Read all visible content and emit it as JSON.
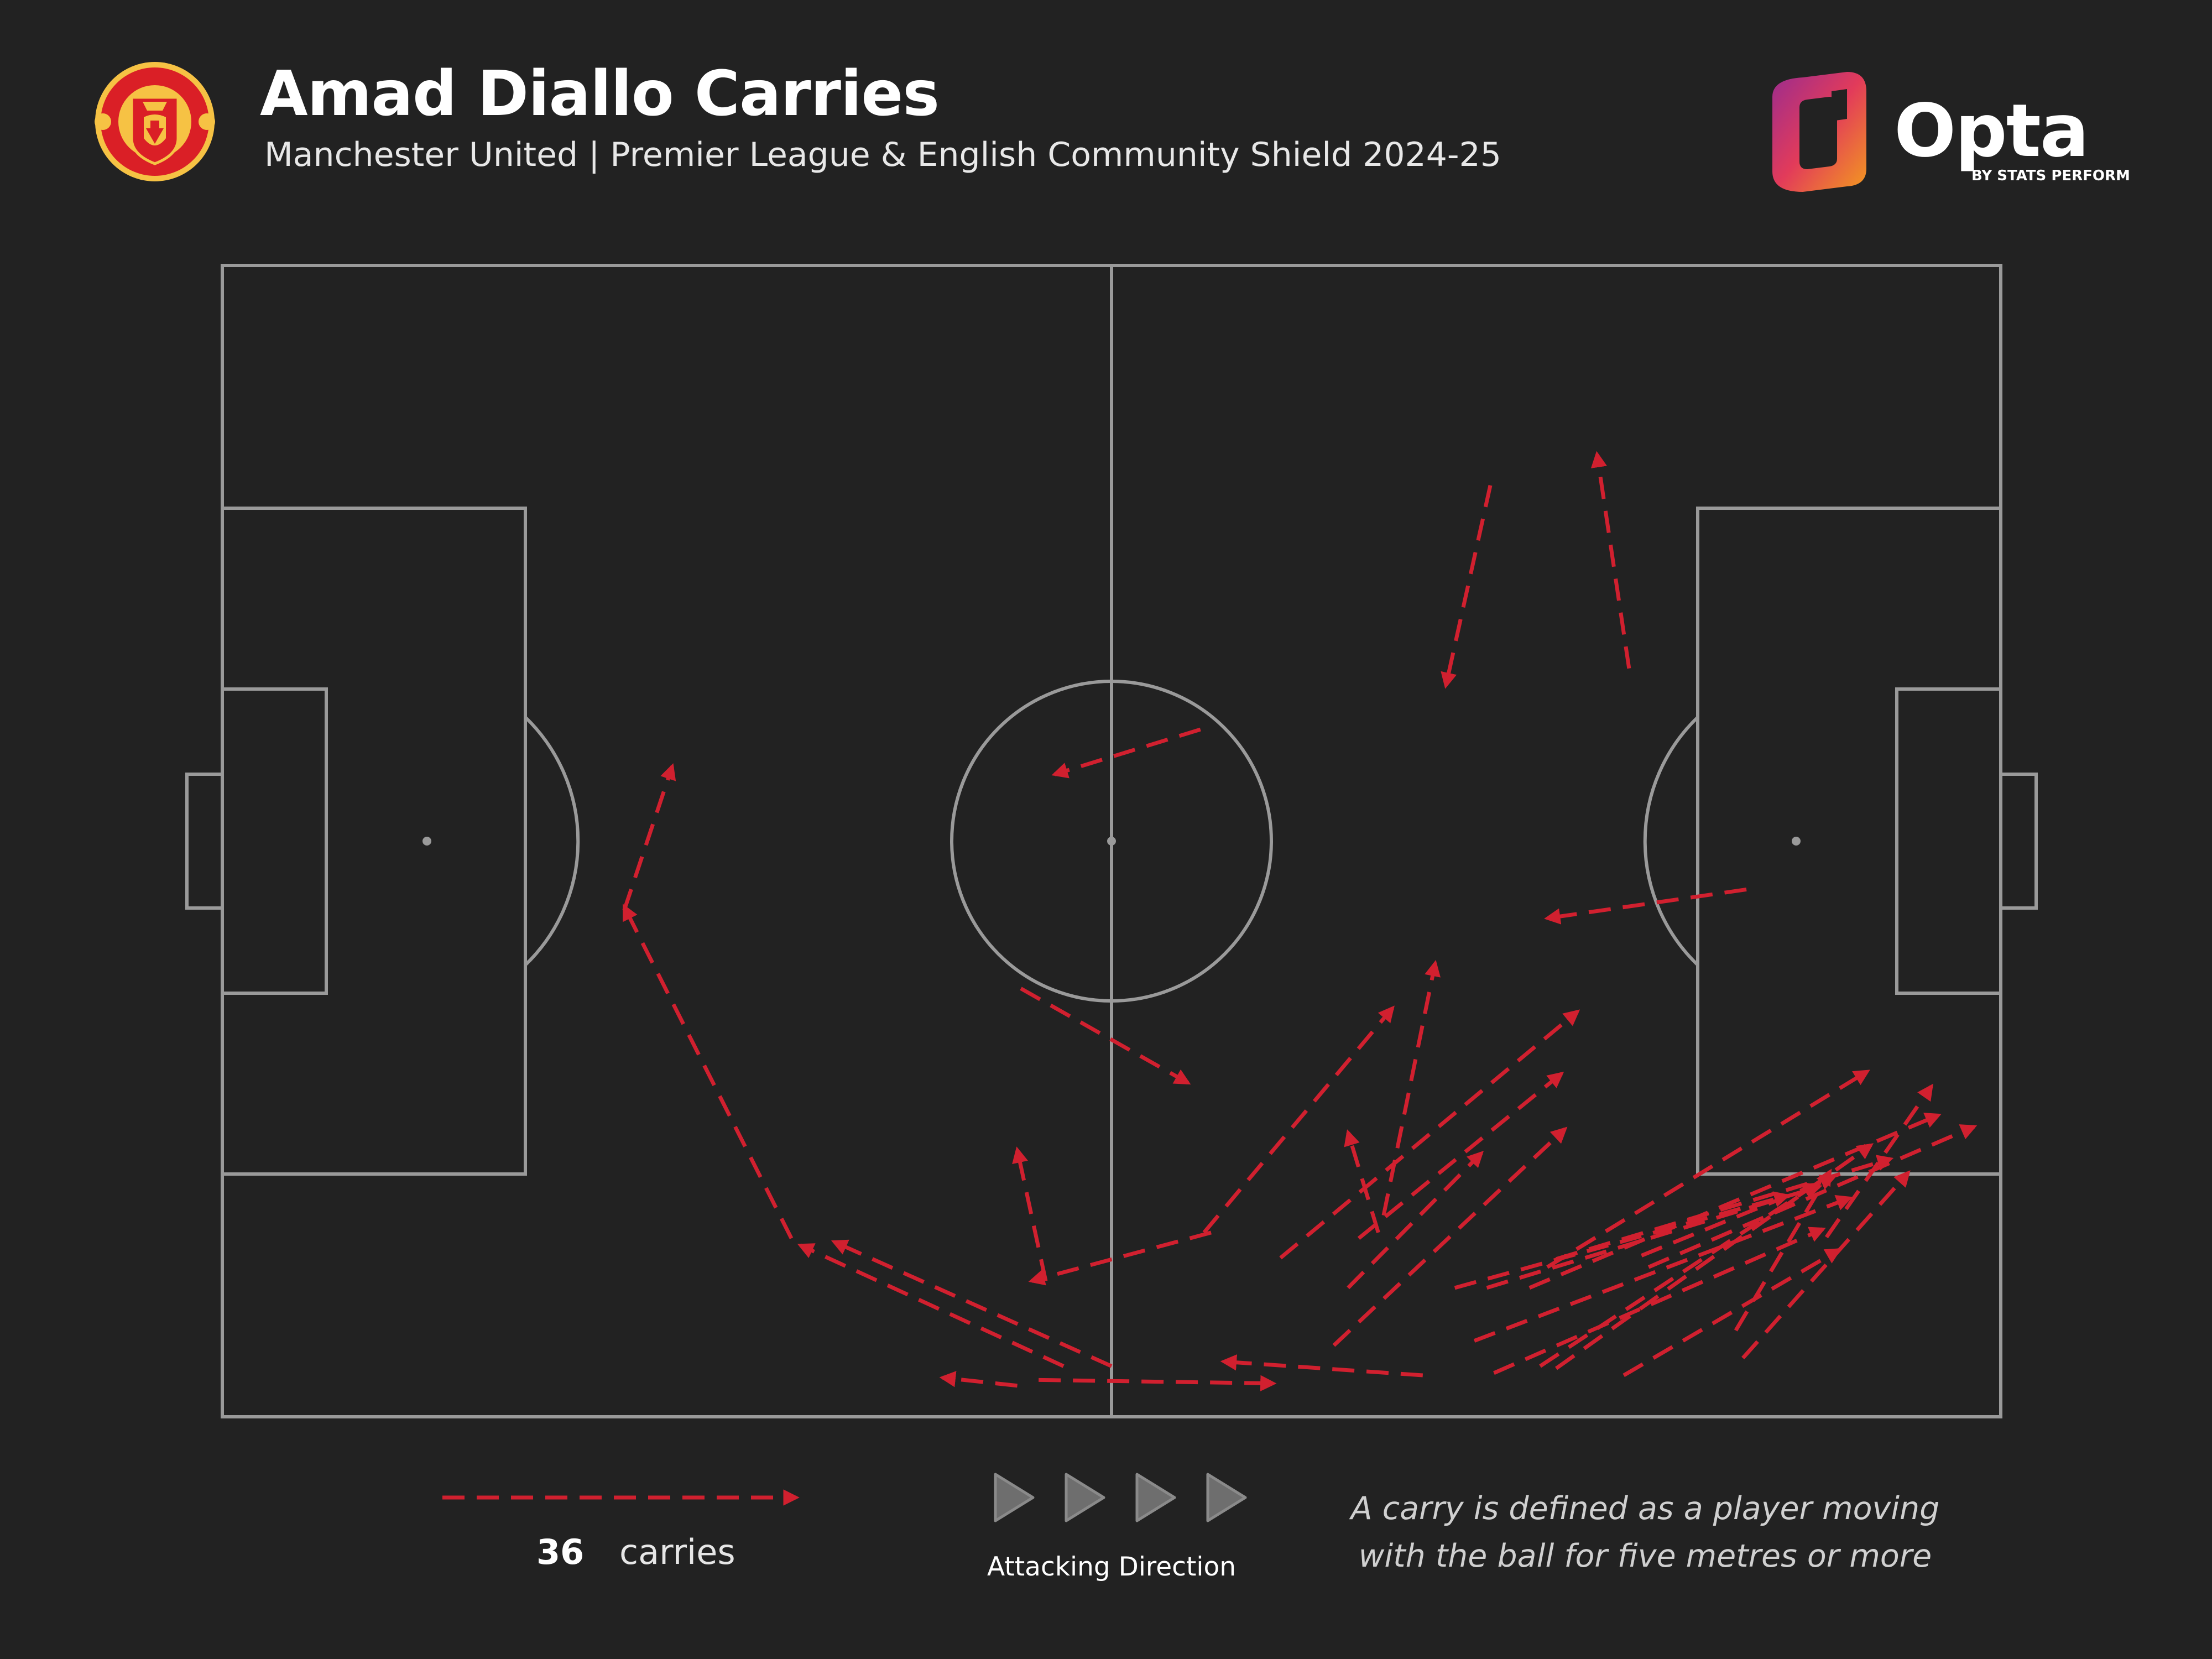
{
  "header": {
    "title": "Amad Diallo Carries",
    "subtitle": "Manchester United | Premier League & English Community Shield 2024-25",
    "crest_icon": "manchester-united-crest-icon",
    "brand": {
      "word": "Opta",
      "byline": "BY STATS PERFORM",
      "icon": "opta-logo-icon"
    }
  },
  "colors": {
    "background": "#222222",
    "pitch_lines": "#9a9a9a",
    "carry": "#d1202f",
    "direction_arrow": "#8a8a8a"
  },
  "chart_data": {
    "type": "pitch-map",
    "pitch": {
      "length": 100,
      "width": 100,
      "attacking_direction": "left-to-right"
    },
    "carry_count_label": "36",
    "carries": [
      {
        "from": [
          71.3,
          19.1
        ],
        "to": [
          68.8,
          36.5
        ]
      },
      {
        "from": [
          79.1,
          35.0
        ],
        "to": [
          77.3,
          16.4
        ]
      },
      {
        "from": [
          55.0,
          40.3
        ],
        "to": [
          46.8,
          44.2
        ]
      },
      {
        "from": [
          85.7,
          54.2
        ],
        "to": [
          74.5,
          56.7
        ]
      },
      {
        "from": [
          44.9,
          62.8
        ],
        "to": [
          54.3,
          71.0
        ]
      },
      {
        "from": [
          55.2,
          84.0
        ],
        "to": [
          65.8,
          64.5
        ]
      },
      {
        "from": [
          65.3,
          82.5
        ],
        "to": [
          68.2,
          60.6
        ]
      },
      {
        "from": [
          59.5,
          86.2
        ],
        "to": [
          76.2,
          64.8
        ]
      },
      {
        "from": [
          63.9,
          84.5
        ],
        "to": [
          75.3,
          70.2
        ]
      },
      {
        "from": [
          65.0,
          84.0
        ],
        "to": [
          63.3,
          75.3
        ]
      },
      {
        "from": [
          63.3,
          88.8
        ],
        "to": [
          70.8,
          77.1
        ]
      },
      {
        "from": [
          62.5,
          93.8
        ],
        "to": [
          75.5,
          75.0
        ]
      },
      {
        "from": [
          69.3,
          88.8
        ],
        "to": [
          88.0,
          80.8
        ]
      },
      {
        "from": [
          71.1,
          88.8
        ],
        "to": [
          89.8,
          80.0
        ]
      },
      {
        "from": [
          74.5,
          87.0
        ],
        "to": [
          92.5,
          70.0
        ]
      },
      {
        "from": [
          75.0,
          86.3
        ],
        "to": [
          93.8,
          77.6
        ]
      },
      {
        "from": [
          73.5,
          88.8
        ],
        "to": [
          96.5,
          73.8
        ]
      },
      {
        "from": [
          79.8,
          86.0
        ],
        "to": [
          90.6,
          79.2
        ]
      },
      {
        "from": [
          80.2,
          87.0
        ],
        "to": [
          98.5,
          74.8
        ]
      },
      {
        "from": [
          70.4,
          93.4
        ],
        "to": [
          91.5,
          81.0
        ]
      },
      {
        "from": [
          71.5,
          96.2
        ],
        "to": [
          90.0,
          83.7
        ]
      },
      {
        "from": [
          74.1,
          95.6
        ],
        "to": [
          89.6,
          79.8
        ]
      },
      {
        "from": [
          75.0,
          95.8
        ],
        "to": [
          92.7,
          76.4
        ]
      },
      {
        "from": [
          78.8,
          96.4
        ],
        "to": [
          90.9,
          85.5
        ]
      },
      {
        "from": [
          85.1,
          92.5
        ],
        "to": [
          90.4,
          78.7
        ]
      },
      {
        "from": [
          90.2,
          84.4
        ],
        "to": [
          96.1,
          71.3
        ]
      },
      {
        "from": [
          85.5,
          94.9
        ],
        "to": [
          94.8,
          78.8
        ]
      },
      {
        "from": [
          44.7,
          97.3
        ],
        "to": [
          40.5,
          96.6
        ]
      },
      {
        "from": [
          47.3,
          95.6
        ],
        "to": [
          32.5,
          85.1
        ]
      },
      {
        "from": [
          50.0,
          95.6
        ],
        "to": [
          34.4,
          84.8
        ]
      },
      {
        "from": [
          55.6,
          84.0
        ],
        "to": [
          45.5,
          88.2
        ]
      },
      {
        "from": [
          46.3,
          88.2
        ],
        "to": [
          44.7,
          76.8
        ]
      },
      {
        "from": [
          45.9,
          96.8
        ],
        "to": [
          59.1,
          97.1
        ]
      },
      {
        "from": [
          67.5,
          96.4
        ],
        "to": [
          56.3,
          95.2
        ]
      },
      {
        "from": [
          32.0,
          84.5
        ],
        "to": [
          22.6,
          55.7
        ]
      },
      {
        "from": [
          22.6,
          56.0
        ],
        "to": [
          25.3,
          43.5
        ]
      }
    ]
  },
  "legend": {
    "count": "36",
    "label": "carries",
    "direction_label": "Attacking Direction",
    "definition_line1": "A carry is defined as a player moving",
    "definition_line2": "with the ball for five metres or more"
  }
}
